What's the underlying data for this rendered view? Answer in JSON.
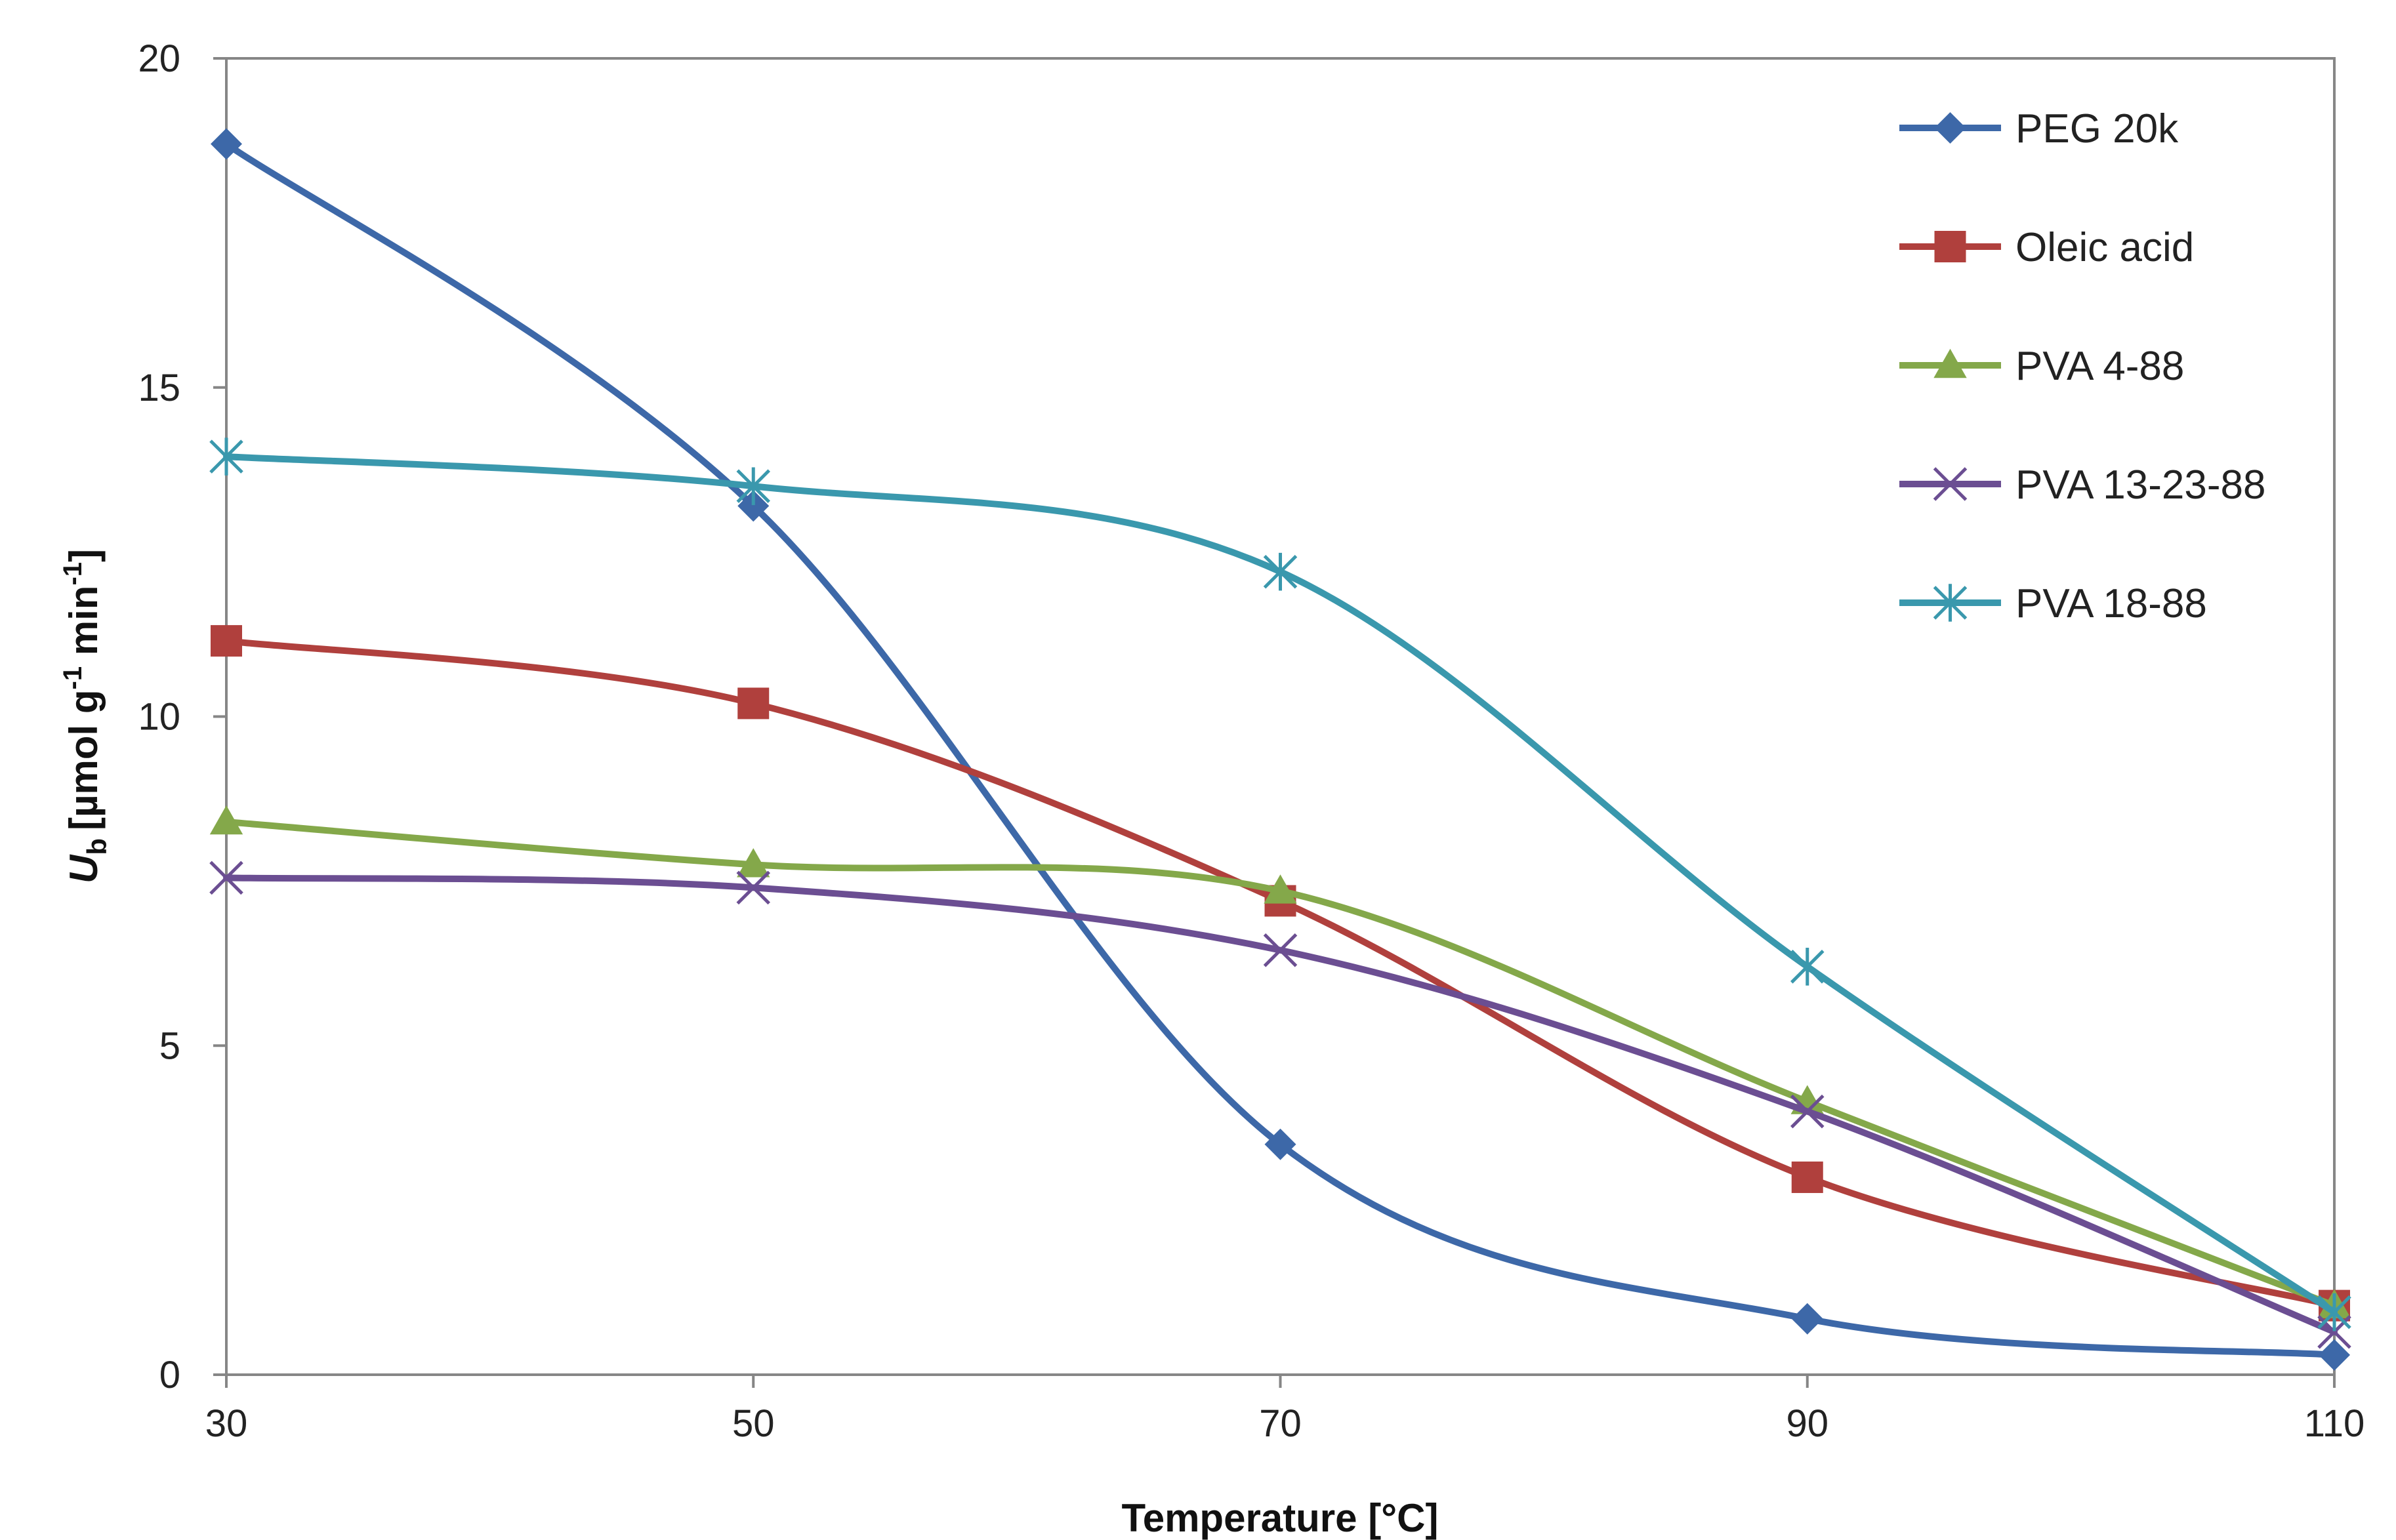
{
  "chart_data": {
    "type": "line",
    "xlabel": "Temperature [°C]",
    "ylabel_main": "U",
    "ylabel_sub": "b",
    "ylabel_unit": "[µmol g",
    "ylabel_sup1": "-1",
    "ylabel_mid": " min",
    "ylabel_sup2": "-1",
    "ylabel_end": "]",
    "x": [
      30,
      50,
      70,
      90,
      110
    ],
    "x_ticks": [
      "30",
      "50",
      "70",
      "90",
      "110"
    ],
    "y_ticks": [
      "0",
      "5",
      "10",
      "15",
      "20"
    ],
    "xlim": [
      30,
      110
    ],
    "ylim": [
      0,
      20
    ],
    "legend_position": "top-right",
    "series": [
      {
        "name": "PEG 20k",
        "values": [
          18.7,
          13.2,
          3.5,
          0.85,
          0.3
        ],
        "color": "#3d68a8",
        "marker": "diamond"
      },
      {
        "name": "Oleic acid",
        "values": [
          11.15,
          10.2,
          7.2,
          3.0,
          1.05
        ],
        "color": "#b0403d",
        "marker": "square"
      },
      {
        "name": "PVA 4-88",
        "values": [
          8.4,
          7.75,
          7.35,
          4.15,
          1.05
        ],
        "color": "#84a84a",
        "marker": "triangle"
      },
      {
        "name": "PVA 13-23-88",
        "values": [
          7.55,
          7.4,
          6.45,
          4.0,
          0.65
        ],
        "color": "#6b4e92",
        "marker": "x"
      },
      {
        "name": "PVA 18-88",
        "values": [
          13.95,
          13.5,
          12.2,
          6.2,
          0.95
        ],
        "color": "#3a98ad",
        "marker": "star"
      }
    ]
  }
}
